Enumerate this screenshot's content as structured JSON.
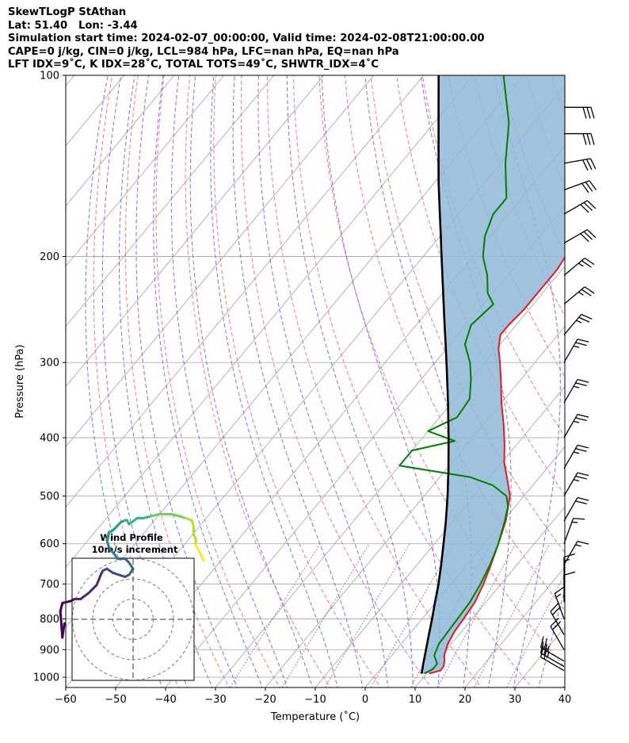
{
  "title_lines": [
    "SkewTLogP StAthan",
    "Lat: 51.40   Lon: -3.44",
    "Simulation start time: 2024-02-07_00:00:00, Valid time: 2024-02-08T21:00:00.00",
    "CAPE=0 j/kg, CIN=0 j/kg, LCL=984 hPa, LFC=nan hPa, EQ=nan hPa",
    "LFT IDX=9˚C, K IDX=28˚C, TOTAL TOTS=49˚C, SHWTR_IDX=4˚C"
  ],
  "chart_data": {
    "type": "line",
    "subtype": "skew-T log-P",
    "xlabel": "Temperature (˚C)",
    "ylabel": "Pressure (hPa)",
    "xlim": [
      -60,
      40
    ],
    "ylim": [
      1040,
      100
    ],
    "y_scale": "log",
    "x_ticks": [
      "−60",
      "−50",
      "−40",
      "−30",
      "−20",
      "−10",
      "0",
      "10",
      "20",
      "30",
      "40"
    ],
    "x_tick_values": [
      -60,
      -50,
      -40,
      -30,
      -20,
      -10,
      0,
      10,
      20,
      30,
      40
    ],
    "y_ticks": [
      "100",
      "200",
      "300",
      "400",
      "500",
      "600",
      "700",
      "800",
      "900",
      "1000"
    ],
    "y_tick_values": [
      100,
      200,
      300,
      400,
      500,
      600,
      700,
      800,
      900,
      1000
    ],
    "grid": true,
    "colors": {
      "temperature": "#e41a1c",
      "dewpoint": "#008000",
      "parcel": "#000000",
      "cape_fill": "#8fb8d8",
      "dry_adiabat": "#ff6060",
      "moist_adiabat": "#5060ff",
      "mixing_ratio": "#9b4dca",
      "isotherm": "#aaaaaa"
    },
    "series": [
      {
        "role": "temperature",
        "points": [
          [
            986,
            10.5
          ],
          [
            975,
            12.3
          ],
          [
            960,
            12.2
          ],
          [
            940,
            11.5
          ],
          [
            920,
            10.5
          ],
          [
            880,
            9.3
          ],
          [
            840,
            8.6
          ],
          [
            800,
            8.3
          ],
          [
            750,
            7.8
          ],
          [
            700,
            6.5
          ],
          [
            650,
            4.8
          ],
          [
            600,
            2.8
          ],
          [
            550,
            0.5
          ],
          [
            500,
            -2.8
          ],
          [
            470,
            -6
          ],
          [
            440,
            -9.5
          ],
          [
            410,
            -12.5
          ],
          [
            380,
            -16
          ],
          [
            350,
            -20
          ],
          [
            320,
            -24
          ],
          [
            300,
            -27
          ],
          [
            285,
            -29.5
          ],
          [
            270,
            -31.5
          ],
          [
            260,
            -31.5
          ],
          [
            245,
            -31
          ],
          [
            230,
            -31
          ],
          [
            210,
            -31
          ],
          [
            190,
            -32
          ],
          [
            170,
            -34
          ],
          [
            160,
            -37
          ],
          [
            140,
            -38
          ],
          [
            120,
            -43
          ],
          [
            110,
            -46
          ],
          [
            100,
            -49
          ]
        ]
      },
      {
        "role": "dewpoint",
        "points": [
          [
            986,
            9.5
          ],
          [
            970,
            10.5
          ],
          [
            950,
            10.5
          ],
          [
            920,
            8.5
          ],
          [
            880,
            7.5
          ],
          [
            840,
            7.3
          ],
          [
            800,
            7.1
          ],
          [
            750,
            6.8
          ],
          [
            700,
            5.9
          ],
          [
            650,
            4.6
          ],
          [
            600,
            2.8
          ],
          [
            550,
            0.3
          ],
          [
            520,
            -1.5
          ],
          [
            500,
            -3.5
          ],
          [
            480,
            -8
          ],
          [
            465,
            -14
          ],
          [
            445,
            -30
          ],
          [
            420,
            -30
          ],
          [
            405,
            -23
          ],
          [
            390,
            -30
          ],
          [
            370,
            -26.5
          ],
          [
            345,
            -27
          ],
          [
            320,
            -30
          ],
          [
            300,
            -33
          ],
          [
            280,
            -37
          ],
          [
            260,
            -39
          ],
          [
            240,
            -38
          ],
          [
            230,
            -41
          ],
          [
            215,
            -44
          ],
          [
            200,
            -48
          ],
          [
            185,
            -51
          ],
          [
            170,
            -53
          ],
          [
            160,
            -53
          ],
          [
            140,
            -59
          ],
          [
            120,
            -65
          ],
          [
            100,
            -74
          ]
        ]
      },
      {
        "role": "parcel",
        "points": [
          [
            986,
            9.0
          ],
          [
            950,
            7.7
          ],
          [
            900,
            5.9
          ],
          [
            850,
            4.0
          ],
          [
            800,
            2.0
          ],
          [
            750,
            -0.2
          ],
          [
            700,
            -2.5
          ],
          [
            650,
            -5.2
          ],
          [
            600,
            -8.2
          ],
          [
            550,
            -11.5
          ],
          [
            500,
            -15.3
          ],
          [
            450,
            -19.7
          ],
          [
            400,
            -24.8
          ],
          [
            350,
            -30.7
          ],
          [
            300,
            -37.7
          ],
          [
            250,
            -46.1
          ],
          [
            200,
            -56.3
          ],
          [
            150,
            -69.4
          ],
          [
            100,
            -87.0
          ]
        ]
      }
    ],
    "wind_barbs": [
      {
        "pressure": 975,
        "speed_kt": 20,
        "direction_deg": 300
      },
      {
        "pressure": 960,
        "speed_kt": 25,
        "direction_deg": 300
      },
      {
        "pressure": 940,
        "speed_kt": 25,
        "direction_deg": 300
      },
      {
        "pressure": 900,
        "speed_kt": 20,
        "direction_deg": 330
      },
      {
        "pressure": 850,
        "speed_kt": 20,
        "direction_deg": 330
      },
      {
        "pressure": 800,
        "speed_kt": 15,
        "direction_deg": 340
      },
      {
        "pressure": 750,
        "speed_kt": 10,
        "direction_deg": 0
      },
      {
        "pressure": 700,
        "speed_kt": 15,
        "direction_deg": 0
      },
      {
        "pressure": 650,
        "speed_kt": 15,
        "direction_deg": 30
      },
      {
        "pressure": 600,
        "speed_kt": 15,
        "direction_deg": 20
      },
      {
        "pressure": 550,
        "speed_kt": 20,
        "direction_deg": 30
      },
      {
        "pressure": 500,
        "speed_kt": 25,
        "direction_deg": 30
      },
      {
        "pressure": 450,
        "speed_kt": 25,
        "direction_deg": 30
      },
      {
        "pressure": 400,
        "speed_kt": 25,
        "direction_deg": 30
      },
      {
        "pressure": 350,
        "speed_kt": 25,
        "direction_deg": 30
      },
      {
        "pressure": 300,
        "speed_kt": 25,
        "direction_deg": 30
      },
      {
        "pressure": 270,
        "speed_kt": 25,
        "direction_deg": 40
      },
      {
        "pressure": 240,
        "speed_kt": 25,
        "direction_deg": 50
      },
      {
        "pressure": 215,
        "speed_kt": 25,
        "direction_deg": 50
      },
      {
        "pressure": 190,
        "speed_kt": 30,
        "direction_deg": 60
      },
      {
        "pressure": 170,
        "speed_kt": 30,
        "direction_deg": 60
      },
      {
        "pressure": 155,
        "speed_kt": 30,
        "direction_deg": 70
      },
      {
        "pressure": 140,
        "speed_kt": 30,
        "direction_deg": 80
      },
      {
        "pressure": 125,
        "speed_kt": 30,
        "direction_deg": 90
      },
      {
        "pressure": 113,
        "speed_kt": 30,
        "direction_deg": 90
      }
    ],
    "hodograph": {
      "title": "Wind Profile",
      "subtitle": "10m/s increment",
      "ring_step_ms": 10,
      "colormap": "viridis",
      "points": [
        [
          -34,
          -2
        ],
        [
          -35,
          -9
        ],
        [
          -36,
          4
        ],
        [
          -35,
          8
        ],
        [
          -31,
          9
        ],
        [
          -29,
          10
        ],
        [
          -26,
          10
        ],
        [
          -22,
          13
        ],
        [
          -18,
          17
        ],
        [
          -16,
          22
        ],
        [
          -15,
          24
        ],
        [
          -13,
          25
        ],
        [
          -10,
          23
        ],
        [
          -7,
          22
        ],
        [
          -4,
          21
        ],
        [
          -2,
          22
        ],
        [
          0,
          25
        ],
        [
          -2,
          28
        ],
        [
          -4,
          30
        ],
        [
          -6,
          30
        ],
        [
          -8,
          30
        ],
        [
          -9,
          32
        ],
        [
          -11,
          34
        ],
        [
          -12,
          36
        ],
        [
          -13,
          39
        ],
        [
          -12,
          43
        ],
        [
          -10,
          44
        ],
        [
          -8,
          46
        ],
        [
          -6,
          48
        ],
        [
          -4,
          49
        ],
        [
          -3,
          49
        ],
        [
          -2,
          47
        ],
        [
          2,
          50
        ],
        [
          5,
          50
        ],
        [
          9,
          51
        ],
        [
          13,
          52
        ],
        [
          16,
          52
        ],
        [
          19,
          52
        ],
        [
          23,
          51
        ],
        [
          26,
          50
        ],
        [
          29,
          49
        ],
        [
          30,
          46
        ],
        [
          30,
          42
        ],
        [
          31,
          40
        ],
        [
          31,
          37
        ],
        [
          32,
          35
        ],
        [
          33,
          33
        ],
        [
          34,
          31
        ],
        [
          35,
          29
        ]
      ]
    }
  }
}
